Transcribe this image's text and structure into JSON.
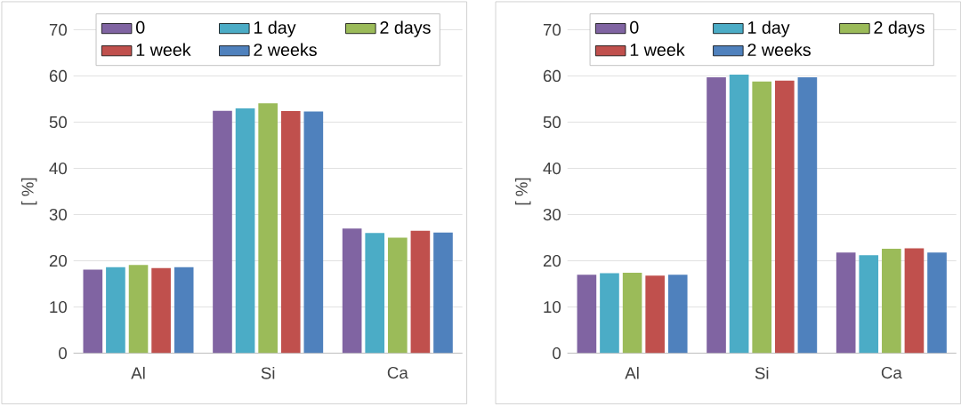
{
  "chart_data": [
    {
      "type": "bar",
      "ylabel": "[ %]",
      "categories": [
        "Al",
        "Si",
        "Ca"
      ],
      "ylim": [
        0,
        70
      ],
      "yticks": [
        0,
        10,
        20,
        30,
        40,
        50,
        60,
        70
      ],
      "grid": "y",
      "legend": "top",
      "series": [
        {
          "name": "0",
          "color": "#8064a2",
          "values": [
            18.1,
            52.5,
            27.0
          ]
        },
        {
          "name": "1 day",
          "color": "#4bacc6",
          "values": [
            18.6,
            53.0,
            26.0
          ]
        },
        {
          "name": "2 days",
          "color": "#9bbb59",
          "values": [
            19.1,
            54.1,
            25.0
          ]
        },
        {
          "name": "1 week",
          "color": "#c0504d",
          "values": [
            18.4,
            52.4,
            26.5
          ]
        },
        {
          "name": "2 weeks",
          "color": "#4f81bd",
          "values": [
            18.6,
            52.3,
            26.1
          ]
        }
      ]
    },
    {
      "type": "bar",
      "ylabel": "[ %]",
      "categories": [
        "Al",
        "Si",
        "Ca"
      ],
      "ylim": [
        0,
        70
      ],
      "yticks": [
        0,
        10,
        20,
        30,
        40,
        50,
        60,
        70
      ],
      "grid": "y",
      "legend": "top",
      "series": [
        {
          "name": "0",
          "color": "#8064a2",
          "values": [
            17.0,
            59.7,
            21.8
          ]
        },
        {
          "name": "1 day",
          "color": "#4bacc6",
          "values": [
            17.3,
            60.3,
            21.2
          ]
        },
        {
          "name": "2 days",
          "color": "#9bbb59",
          "values": [
            17.4,
            58.8,
            22.6
          ]
        },
        {
          "name": "1 week",
          "color": "#c0504d",
          "values": [
            16.8,
            59.0,
            22.7
          ]
        },
        {
          "name": "2 weeks",
          "color": "#4f81bd",
          "values": [
            17.0,
            59.7,
            21.8
          ]
        }
      ]
    }
  ]
}
